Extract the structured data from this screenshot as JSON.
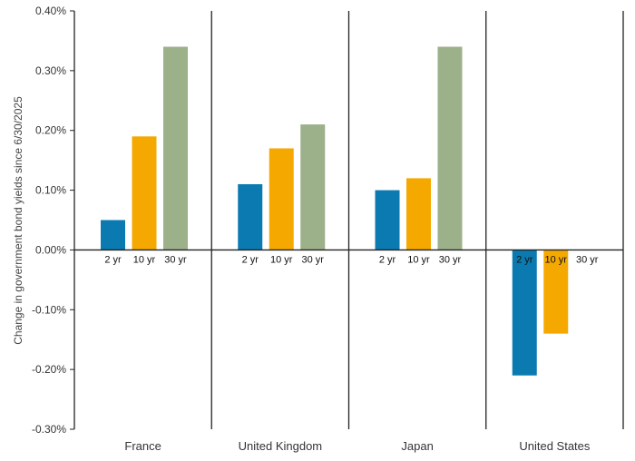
{
  "chart_data": {
    "type": "bar",
    "ylabel": "Change in government bond yields since 6/30/2025",
    "ylim": [
      -0.3,
      0.4
    ],
    "yticks": [
      0.4,
      0.3,
      0.2,
      0.1,
      0.0,
      -0.1,
      -0.2,
      -0.3
    ],
    "ytick_labels": [
      "0.40%",
      "0.30%",
      "0.20%",
      "0.10%",
      "0.00%",
      "-0.10%",
      "-0.20%",
      "-0.30%"
    ],
    "categories": [
      "France",
      "United Kingdom",
      "Japan",
      "United States"
    ],
    "series": [
      {
        "name": "2 yr",
        "color": "#0A7AB0",
        "values": [
          0.05,
          0.11,
          0.1,
          -0.21
        ]
      },
      {
        "name": "10 yr",
        "color": "#F5A800",
        "values": [
          0.19,
          0.17,
          0.12,
          -0.14
        ]
      },
      {
        "name": "30 yr",
        "color": "#9CB08A",
        "values": [
          0.34,
          0.21,
          0.34,
          0.0
        ]
      }
    ],
    "grid": false,
    "group_dividers": true
  }
}
